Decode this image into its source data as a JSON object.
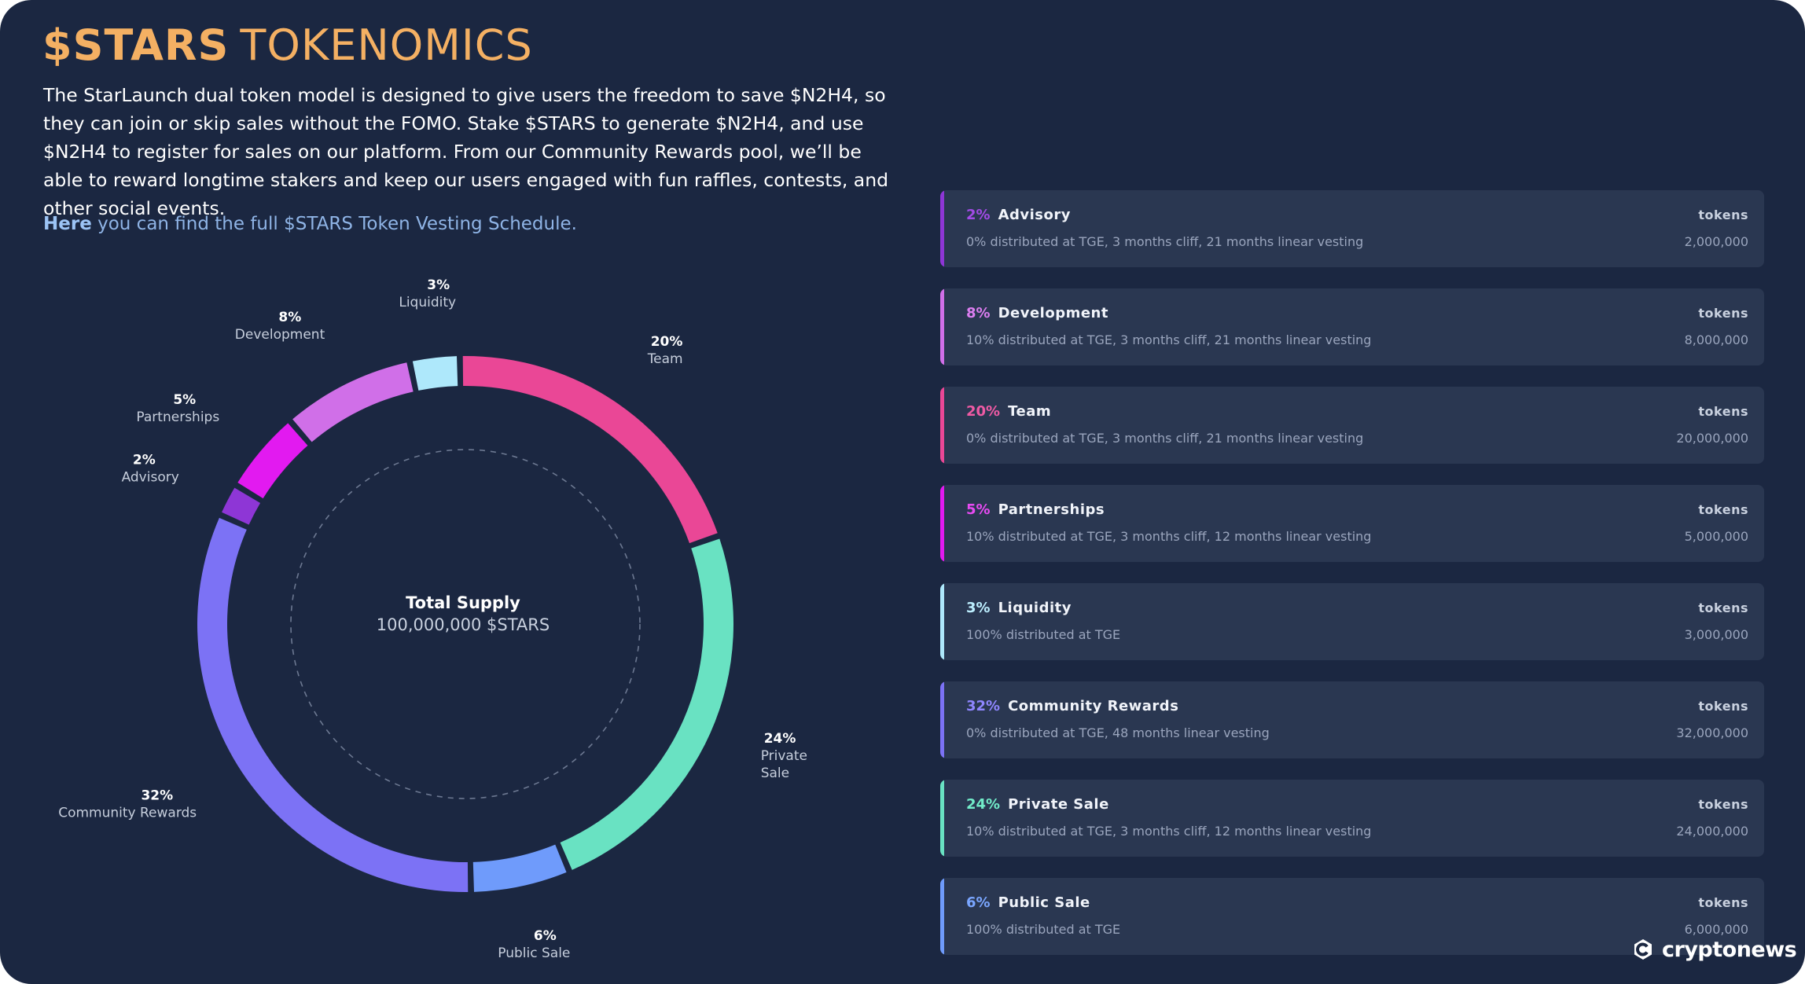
{
  "header": {
    "title_strong": "$STARS",
    "title_light": "TOKENOMICS",
    "description": "The StarLaunch dual token model is designed to give users the freedom to save $N2H4, so they can join or skip sales without the FOMO. Stake $STARS to generate $N2H4, and use $N2H4 to register for sales on our platform. From our Community Rewards pool, we’ll be able to reward longtime stakers and keep our users engaged with fun raffles, contests, and other social events.",
    "link_strong": "Here",
    "link_rest": " you can find the full $STARS Token Vesting Schedule."
  },
  "chart_data": {
    "type": "pie",
    "variant": "donut",
    "center_title": "Total Supply",
    "center_value": "100,000,000 $STARS",
    "slices": [
      {
        "label": "Liquidity",
        "pct_label": "3%",
        "value": 3,
        "color": "#aee8fb"
      },
      {
        "label": "Team",
        "pct_label": "20%",
        "value": 20,
        "color": "#ea4796"
      },
      {
        "label": "Private Sale",
        "label_lines": [
          "Private",
          "Sale"
        ],
        "pct_label": "24%",
        "value": 24,
        "color": "#69e2c2"
      },
      {
        "label": "Public Sale",
        "pct_label": "6%",
        "value": 6,
        "color": "#6f9bfb"
      },
      {
        "label": "Community Rewards",
        "pct_label": "32%",
        "value": 32,
        "color": "#7c72f5"
      },
      {
        "label": "Advisory",
        "pct_label": "2%",
        "value": 2,
        "color": "#8e36d6"
      },
      {
        "label": "Partnerships",
        "pct_label": "5%",
        "value": 5,
        "color": "#e21af0"
      },
      {
        "label": "Development",
        "pct_label": "8%",
        "value": 8,
        "color": "#d06fe8"
      }
    ]
  },
  "allocations": [
    {
      "pct": "2%",
      "name": "Advisory",
      "tokens_label": "tokens",
      "distribution": "0% distributed at TGE, 3 months cliff, 21 months linear vesting",
      "amount": "2,000,000",
      "color": "#8e36d6",
      "pct_color": "#a24be6"
    },
    {
      "pct": "8%",
      "name": "Development",
      "tokens_label": "tokens",
      "distribution": "10% distributed at TGE, 3 months cliff, 21 months linear vesting",
      "amount": "8,000,000",
      "color": "#d06fe8",
      "pct_color": "#dc7ef0"
    },
    {
      "pct": "20%",
      "name": "Team",
      "tokens_label": "tokens",
      "distribution": "0% distributed at TGE, 3 months cliff, 21 months linear vesting",
      "amount": "20,000,000",
      "color": "#ea4796",
      "pct_color": "#ef5aa4"
    },
    {
      "pct": "5%",
      "name": "Partnerships",
      "tokens_label": "tokens",
      "distribution": "10% distributed at TGE, 3 months cliff, 12 months linear vesting",
      "amount": "5,000,000",
      "color": "#e21af0",
      "pct_color": "#e84bf3"
    },
    {
      "pct": "3%",
      "name": "Liquidity",
      "tokens_label": "tokens",
      "distribution": "100% distributed at TGE",
      "amount": "3,000,000",
      "color": "#aee8fb",
      "pct_color": "#bdefff"
    },
    {
      "pct": "32%",
      "name": "Community Rewards",
      "tokens_label": "tokens",
      "distribution": "0% distributed at TGE, 48 months linear vesting",
      "amount": "32,000,000",
      "color": "#7c72f5",
      "pct_color": "#8f86ff"
    },
    {
      "pct": "24%",
      "name": "Private Sale",
      "tokens_label": "tokens",
      "distribution": "10% distributed at TGE, 3 months cliff, 12 months linear vesting",
      "amount": "24,000,000",
      "color": "#69e2c2",
      "pct_color": "#72ecc9"
    },
    {
      "pct": "6%",
      "name": "Public Sale",
      "tokens_label": "tokens",
      "distribution": "100% distributed at TGE",
      "amount": "6,000,000",
      "color": "#6f9bfb",
      "pct_color": "#7aa6ff"
    }
  ],
  "watermark": {
    "text": "cryptonews"
  }
}
